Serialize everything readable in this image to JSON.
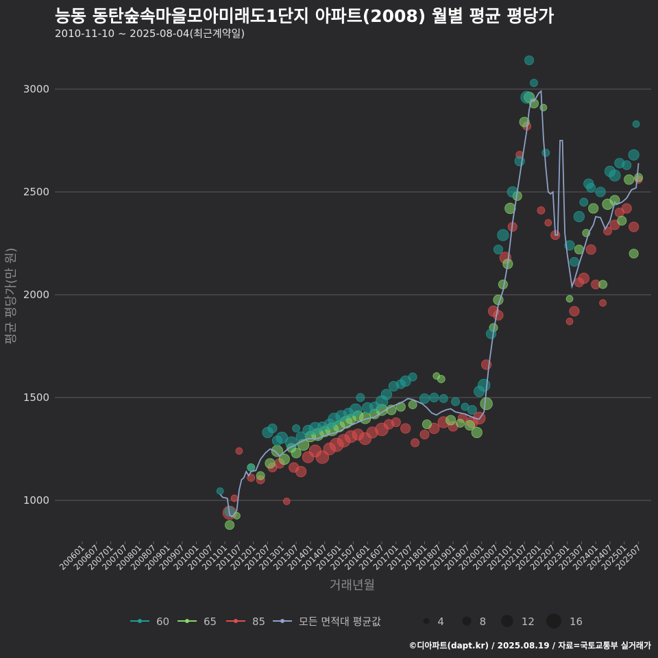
{
  "title": "능동 동탄숲속마을모아미래도1단지 아파트(2008) 월별 평균 평당가",
  "subtitle": "2010-11-10 ~ 2025-08-04(최근계약일)",
  "footer": "©디아파트(dapt.kr) / 2025.08.19 / 자료=국토교통부 실거래가",
  "colors": {
    "s60": "#1f9e97",
    "s65": "#86d86c",
    "s85": "#e04f4f",
    "avg": "#8fa3c8",
    "grid": "#5c5c5c",
    "bg": "#29292b"
  },
  "chart_data": {
    "type": "scatter",
    "xlabel": "거래년월",
    "ylabel": "평균 평당가(만 원)",
    "ylim": [
      800,
      3200
    ],
    "yticks": [
      1000,
      1500,
      2000,
      2500,
      3000
    ],
    "xlim": [
      "2006-01",
      "2025-10"
    ],
    "xticks": [
      "200601",
      "200607",
      "200701",
      "200707",
      "200801",
      "200807",
      "200901",
      "200907",
      "201001",
      "201007",
      "201101",
      "201107",
      "201201",
      "201207",
      "201301",
      "201307",
      "201401",
      "201407",
      "201501",
      "201507",
      "201601",
      "201607",
      "201701",
      "201707",
      "201801",
      "201807",
      "201901",
      "201907",
      "202001",
      "202007",
      "202101",
      "202107",
      "202201",
      "202207",
      "202301",
      "202307",
      "202401",
      "202407",
      "202501",
      "202507"
    ],
    "legend": {
      "series": [
        {
          "key": "s60",
          "label": "60"
        },
        {
          "key": "s65",
          "label": "65"
        },
        {
          "key": "s85",
          "label": "85"
        },
        {
          "key": "avg",
          "label": "모든 면적대 평균값"
        }
      ],
      "sizes": [
        {
          "label": "4",
          "value": 4
        },
        {
          "label": "8",
          "value": 8
        },
        {
          "label": "12",
          "value": 12
        },
        {
          "label": "16",
          "value": 16
        }
      ]
    },
    "average_line": [
      [
        "2010-11",
        1030
      ],
      [
        "2010-12",
        1015
      ],
      [
        "2011-02",
        1010
      ],
      [
        "2011-03",
        930
      ],
      [
        "2011-04",
        920
      ],
      [
        "2011-06",
        950
      ],
      [
        "2011-07",
        1050
      ],
      [
        "2011-08",
        1100
      ],
      [
        "2011-09",
        1110
      ],
      [
        "2011-10",
        1140
      ],
      [
        "2011-11",
        1120
      ],
      [
        "2011-12",
        1140
      ],
      [
        "2012-02",
        1145
      ],
      [
        "2012-04",
        1200
      ],
      [
        "2012-06",
        1230
      ],
      [
        "2012-08",
        1250
      ],
      [
        "2012-10",
        1240
      ],
      [
        "2012-12",
        1215
      ],
      [
        "2013-02",
        1235
      ],
      [
        "2013-04",
        1255
      ],
      [
        "2013-06",
        1265
      ],
      [
        "2013-08",
        1280
      ],
      [
        "2013-10",
        1290
      ],
      [
        "2013-12",
        1300
      ],
      [
        "2014-02",
        1300
      ],
      [
        "2014-04",
        1300
      ],
      [
        "2014-06",
        1310
      ],
      [
        "2014-08",
        1320
      ],
      [
        "2014-10",
        1325
      ],
      [
        "2014-12",
        1330
      ],
      [
        "2015-02",
        1340
      ],
      [
        "2015-04",
        1355
      ],
      [
        "2015-06",
        1365
      ],
      [
        "2015-08",
        1375
      ],
      [
        "2015-10",
        1385
      ],
      [
        "2015-12",
        1395
      ],
      [
        "2016-02",
        1400
      ],
      [
        "2016-04",
        1405
      ],
      [
        "2016-06",
        1420
      ],
      [
        "2016-08",
        1435
      ],
      [
        "2016-10",
        1450
      ],
      [
        "2016-12",
        1460
      ],
      [
        "2017-02",
        1470
      ],
      [
        "2017-04",
        1480
      ],
      [
        "2017-06",
        1495
      ],
      [
        "2017-08",
        1490
      ],
      [
        "2017-10",
        1480
      ],
      [
        "2017-12",
        1470
      ],
      [
        "2018-02",
        1450
      ],
      [
        "2018-04",
        1425
      ],
      [
        "2018-06",
        1415
      ],
      [
        "2018-08",
        1430
      ],
      [
        "2018-10",
        1440
      ],
      [
        "2018-12",
        1445
      ],
      [
        "2019-02",
        1430
      ],
      [
        "2019-04",
        1425
      ],
      [
        "2019-06",
        1420
      ],
      [
        "2019-08",
        1410
      ],
      [
        "2019-10",
        1400
      ],
      [
        "2019-12",
        1395
      ],
      [
        "2020-02",
        1430
      ],
      [
        "2020-04",
        1650
      ],
      [
        "2020-06",
        1820
      ],
      [
        "2020-08",
        1950
      ],
      [
        "2020-10",
        2020
      ],
      [
        "2020-12",
        2150
      ],
      [
        "2021-02",
        2350
      ],
      [
        "2021-04",
        2500
      ],
      [
        "2021-06",
        2650
      ],
      [
        "2021-08",
        2800
      ],
      [
        "2021-09",
        2900
      ],
      [
        "2021-10",
        2950
      ],
      [
        "2021-11",
        2940
      ],
      [
        "2021-12",
        2960
      ],
      [
        "2022-01",
        2980
      ],
      [
        "2022-02",
        2990
      ],
      [
        "2022-03",
        2760
      ],
      [
        "2022-04",
        2620
      ],
      [
        "2022-05",
        2500
      ],
      [
        "2022-06",
        2490
      ],
      [
        "2022-07",
        2500
      ],
      [
        "2022-08",
        2290
      ],
      [
        "2022-09",
        2290
      ],
      [
        "2022-10",
        2750
      ],
      [
        "2022-11",
        2750
      ],
      [
        "2022-12",
        2300
      ],
      [
        "2023-01",
        2200
      ],
      [
        "2023-02",
        2120
      ],
      [
        "2023-03",
        2040
      ],
      [
        "2023-04",
        2070
      ],
      [
        "2023-05",
        2110
      ],
      [
        "2023-06",
        2150
      ],
      [
        "2023-08",
        2220
      ],
      [
        "2023-10",
        2300
      ],
      [
        "2023-12",
        2340
      ],
      [
        "2024-01",
        2380
      ],
      [
        "2024-03",
        2375
      ],
      [
        "2024-05",
        2320
      ],
      [
        "2024-07",
        2360
      ],
      [
        "2024-09",
        2450
      ],
      [
        "2024-10",
        2440
      ],
      [
        "2024-12",
        2450
      ],
      [
        "2025-02",
        2470
      ],
      [
        "2025-04",
        2510
      ],
      [
        "2025-06",
        2520
      ],
      [
        "2025-07",
        2640
      ]
    ],
    "bubbles": {
      "s60": [
        [
          "2010-11",
          1045,
          5
        ],
        [
          "2011-03",
          945,
          9
        ],
        [
          "2011-12",
          1160,
          5
        ],
        [
          "2012-07",
          1330,
          10
        ],
        [
          "2012-09",
          1350,
          8
        ],
        [
          "2012-11",
          1290,
          9
        ],
        [
          "2013-01",
          1305,
          11
        ],
        [
          "2013-05",
          1280,
          12
        ],
        [
          "2013-07",
          1350,
          6
        ],
        [
          "2013-09",
          1310,
          9
        ],
        [
          "2013-12",
          1340,
          10
        ],
        [
          "2014-03",
          1350,
          12
        ],
        [
          "2014-06",
          1360,
          8
        ],
        [
          "2014-09",
          1370,
          10
        ],
        [
          "2014-11",
          1395,
          12
        ],
        [
          "2015-02",
          1410,
          11
        ],
        [
          "2015-05",
          1425,
          9
        ],
        [
          "2015-08",
          1440,
          12
        ],
        [
          "2015-10",
          1500,
          7
        ],
        [
          "2016-01",
          1450,
          10
        ],
        [
          "2016-04",
          1455,
          9
        ],
        [
          "2016-07",
          1480,
          12
        ],
        [
          "2016-09",
          1515,
          10
        ],
        [
          "2016-12",
          1555,
          9
        ],
        [
          "2017-03",
          1565,
          8
        ],
        [
          "2017-05",
          1580,
          10
        ],
        [
          "2017-08",
          1600,
          7
        ],
        [
          "2018-01",
          1495,
          9
        ],
        [
          "2018-05",
          1500,
          8
        ],
        [
          "2018-09",
          1495,
          7
        ],
        [
          "2019-02",
          1480,
          7
        ],
        [
          "2019-06",
          1455,
          6
        ],
        [
          "2019-09",
          1440,
          8
        ],
        [
          "2019-12",
          1530,
          10
        ],
        [
          "2020-02",
          1560,
          12
        ],
        [
          "2020-05",
          1810,
          9
        ],
        [
          "2020-08",
          2220,
          8
        ],
        [
          "2020-10",
          2290,
          11
        ],
        [
          "2021-02",
          2500,
          10
        ],
        [
          "2021-05",
          2650,
          9
        ],
        [
          "2021-08",
          2960,
          12
        ],
        [
          "2021-09",
          3140,
          8
        ],
        [
          "2021-11",
          3030,
          6
        ],
        [
          "2022-04",
          2690,
          6
        ],
        [
          "2023-02",
          2240,
          9
        ],
        [
          "2023-04",
          2160,
          8
        ],
        [
          "2023-06",
          2380,
          10
        ],
        [
          "2023-08",
          2450,
          7
        ],
        [
          "2023-10",
          2540,
          9
        ],
        [
          "2023-11",
          2520,
          8
        ],
        [
          "2024-03",
          2500,
          9
        ],
        [
          "2024-07",
          2600,
          10
        ],
        [
          "2024-09",
          2580,
          11
        ],
        [
          "2024-11",
          2640,
          9
        ],
        [
          "2025-02",
          2630,
          8
        ],
        [
          "2025-05",
          2680,
          10
        ],
        [
          "2025-06",
          2830,
          5
        ]
      ],
      "s65": [
        [
          "2011-03",
          880,
          8
        ],
        [
          "2011-06",
          925,
          5
        ],
        [
          "2011-12",
          1160,
          6
        ],
        [
          "2012-04",
          1120,
          7
        ],
        [
          "2012-08",
          1180,
          9
        ],
        [
          "2012-11",
          1240,
          11
        ],
        [
          "2013-02",
          1200,
          10
        ],
        [
          "2013-05",
          1255,
          8
        ],
        [
          "2013-07",
          1230,
          9
        ],
        [
          "2013-10",
          1270,
          11
        ],
        [
          "2014-01",
          1310,
          10
        ],
        [
          "2014-04",
          1320,
          12
        ],
        [
          "2014-07",
          1335,
          10
        ],
        [
          "2014-10",
          1345,
          13
        ],
        [
          "2015-01",
          1360,
          11
        ],
        [
          "2015-04",
          1380,
          12
        ],
        [
          "2015-06",
          1395,
          9
        ],
        [
          "2015-09",
          1410,
          10
        ],
        [
          "2015-12",
          1400,
          11
        ],
        [
          "2016-04",
          1420,
          9
        ],
        [
          "2016-07",
          1440,
          11
        ],
        [
          "2016-11",
          1440,
          9
        ],
        [
          "2017-03",
          1455,
          8
        ],
        [
          "2017-08",
          1465,
          7
        ],
        [
          "2018-02",
          1370,
          8
        ],
        [
          "2018-06",
          1605,
          5
        ],
        [
          "2018-08",
          1590,
          6
        ],
        [
          "2018-12",
          1390,
          9
        ],
        [
          "2019-04",
          1375,
          7
        ],
        [
          "2019-08",
          1365,
          9
        ],
        [
          "2019-11",
          1330,
          10
        ],
        [
          "2020-03",
          1470,
          12
        ],
        [
          "2020-06",
          1840,
          7
        ],
        [
          "2020-08",
          1975,
          9
        ],
        [
          "2020-10",
          2050,
          8
        ],
        [
          "2020-12",
          2150,
          9
        ],
        [
          "2021-01",
          2420,
          10
        ],
        [
          "2021-04",
          2480,
          8
        ],
        [
          "2021-07",
          2840,
          9
        ],
        [
          "2021-09",
          2960,
          10
        ],
        [
          "2021-11",
          2930,
          8
        ],
        [
          "2022-03",
          2910,
          5
        ],
        [
          "2023-02",
          1980,
          5
        ],
        [
          "2023-06",
          2220,
          8
        ],
        [
          "2023-09",
          2300,
          6
        ],
        [
          "2023-12",
          2420,
          9
        ],
        [
          "2024-04",
          2050,
          7
        ],
        [
          "2024-06",
          2440,
          10
        ],
        [
          "2024-09",
          2460,
          9
        ],
        [
          "2024-12",
          2360,
          8
        ],
        [
          "2025-03",
          2560,
          9
        ],
        [
          "2025-05",
          2200,
          8
        ],
        [
          "2025-07",
          2570,
          7
        ]
      ],
      "s85": [
        [
          "2011-03",
          940,
          14
        ],
        [
          "2011-05",
          1010,
          5
        ],
        [
          "2011-07",
          1240,
          5
        ],
        [
          "2011-12",
          1110,
          6
        ],
        [
          "2012-04",
          1100,
          7
        ],
        [
          "2012-09",
          1160,
          8
        ],
        [
          "2012-12",
          1180,
          9
        ],
        [
          "2013-03",
          995,
          5
        ],
        [
          "2013-06",
          1160,
          9
        ],
        [
          "2013-09",
          1140,
          10
        ],
        [
          "2013-12",
          1210,
          11
        ],
        [
          "2014-03",
          1240,
          12
        ],
        [
          "2014-06",
          1210,
          13
        ],
        [
          "2014-09",
          1250,
          12
        ],
        [
          "2014-12",
          1270,
          14
        ],
        [
          "2015-03",
          1290,
          13
        ],
        [
          "2015-06",
          1310,
          12
        ],
        [
          "2015-09",
          1320,
          11
        ],
        [
          "2015-12",
          1300,
          12
        ],
        [
          "2016-03",
          1330,
          11
        ],
        [
          "2016-07",
          1345,
          13
        ],
        [
          "2016-10",
          1370,
          9
        ],
        [
          "2017-01",
          1380,
          8
        ],
        [
          "2017-05",
          1350,
          9
        ],
        [
          "2017-09",
          1280,
          7
        ],
        [
          "2018-01",
          1320,
          8
        ],
        [
          "2018-05",
          1350,
          10
        ],
        [
          "2018-09",
          1380,
          11
        ],
        [
          "2019-01",
          1360,
          9
        ],
        [
          "2019-05",
          1400,
          8
        ],
        [
          "2019-09",
          1380,
          11
        ],
        [
          "2019-12",
          1400,
          12
        ],
        [
          "2020-03",
          1660,
          9
        ],
        [
          "2020-06",
          1920,
          10
        ],
        [
          "2020-08",
          1900,
          9
        ],
        [
          "2020-11",
          2180,
          11
        ],
        [
          "2021-02",
          2330,
          8
        ],
        [
          "2021-05",
          2680,
          6
        ],
        [
          "2021-08",
          2820,
          7
        ],
        [
          "2022-02",
          2410,
          6
        ],
        [
          "2022-05",
          2350,
          5
        ],
        [
          "2022-08",
          2290,
          8
        ],
        [
          "2023-02",
          1870,
          5
        ],
        [
          "2023-04",
          1920,
          9
        ],
        [
          "2023-06",
          2060,
          8
        ],
        [
          "2023-08",
          2080,
          10
        ],
        [
          "2023-11",
          2220,
          9
        ],
        [
          "2024-01",
          2050,
          8
        ],
        [
          "2024-04",
          1960,
          5
        ],
        [
          "2024-06",
          2310,
          7
        ],
        [
          "2024-09",
          2340,
          9
        ],
        [
          "2024-11",
          2400,
          8
        ],
        [
          "2025-02",
          2420,
          9
        ],
        [
          "2025-05",
          2330,
          9
        ],
        [
          "2025-07",
          2560,
          6
        ]
      ]
    }
  }
}
